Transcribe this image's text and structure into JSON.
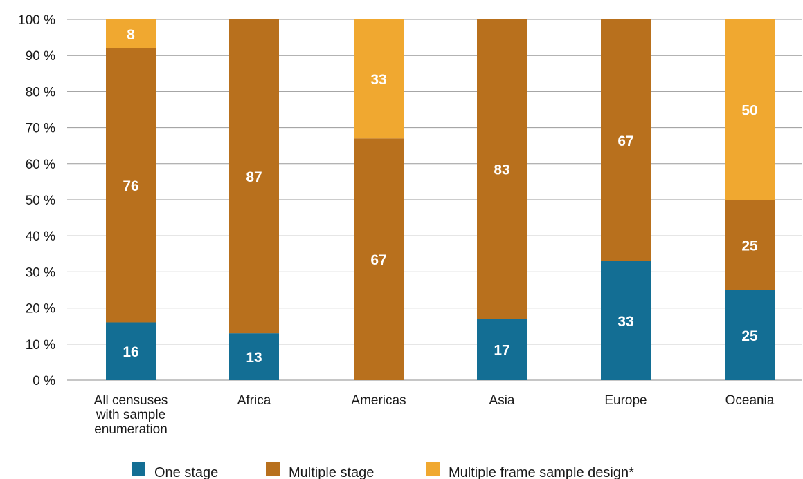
{
  "chart_data": {
    "type": "bar",
    "stacked": true,
    "categories": [
      [
        "All censuses",
        "with sample",
        "enumeration"
      ],
      [
        "Africa"
      ],
      [
        "Americas"
      ],
      [
        "Asia"
      ],
      [
        "Europe"
      ],
      [
        "Oceania"
      ]
    ],
    "series": [
      {
        "name": "One stage",
        "color": "#136e94",
        "values": [
          16,
          13,
          0,
          17,
          33,
          25
        ]
      },
      {
        "name": "Multiple stage",
        "color": "#b8701d",
        "values": [
          76,
          87,
          67,
          83,
          67,
          25
        ]
      },
      {
        "name": "Multiple frame sample design*",
        "color": "#f0a830",
        "values": [
          8,
          0,
          33,
          0,
          0,
          50
        ]
      }
    ],
    "ylim": [
      0,
      100
    ],
    "yticks": [
      0,
      10,
      20,
      30,
      40,
      50,
      60,
      70,
      80,
      90,
      100
    ],
    "ytick_suffix": " %",
    "grid": true,
    "legend_position": "bottom"
  }
}
